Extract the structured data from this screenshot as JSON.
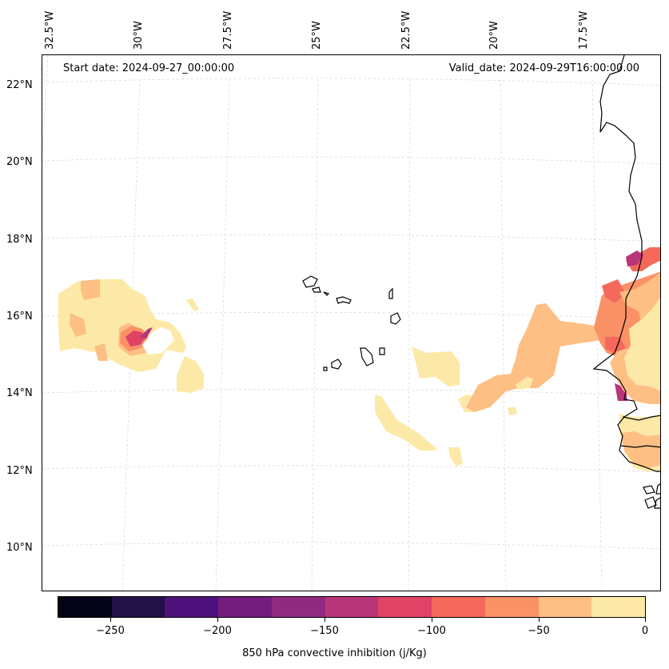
{
  "header": {
    "start_date": "Start date: 2024-09-27_00:00:00",
    "valid_date": "Valid_date: 2024-09-29T16:00:00.00"
  },
  "latitude_labels": [
    "22°N",
    "20°N",
    "18°N",
    "16°N",
    "14°N",
    "12°N",
    "10°N"
  ],
  "longitude_labels": [
    "32.5°W",
    "30°W",
    "27.5°W",
    "25°W",
    "22.5°W",
    "20°W",
    "17.5°W"
  ],
  "colorbar": {
    "title": "850 hPa convective inhibition (j/Kg)",
    "tick_labels": [
      "−250",
      "−200",
      "−150",
      "−100",
      "−50",
      "0"
    ],
    "levels": [
      -275,
      -250,
      -225,
      -200,
      -175,
      -150,
      -125,
      -100,
      -75,
      -50,
      -25,
      0
    ],
    "colors": [
      "#050417",
      "#201246",
      "#4c117a",
      "#741d7f",
      "#8f2a81",
      "#b8357a",
      "#df4366",
      "#f4695b",
      "#fb9167",
      "#fdbf84",
      "#fde9a7"
    ]
  }
}
